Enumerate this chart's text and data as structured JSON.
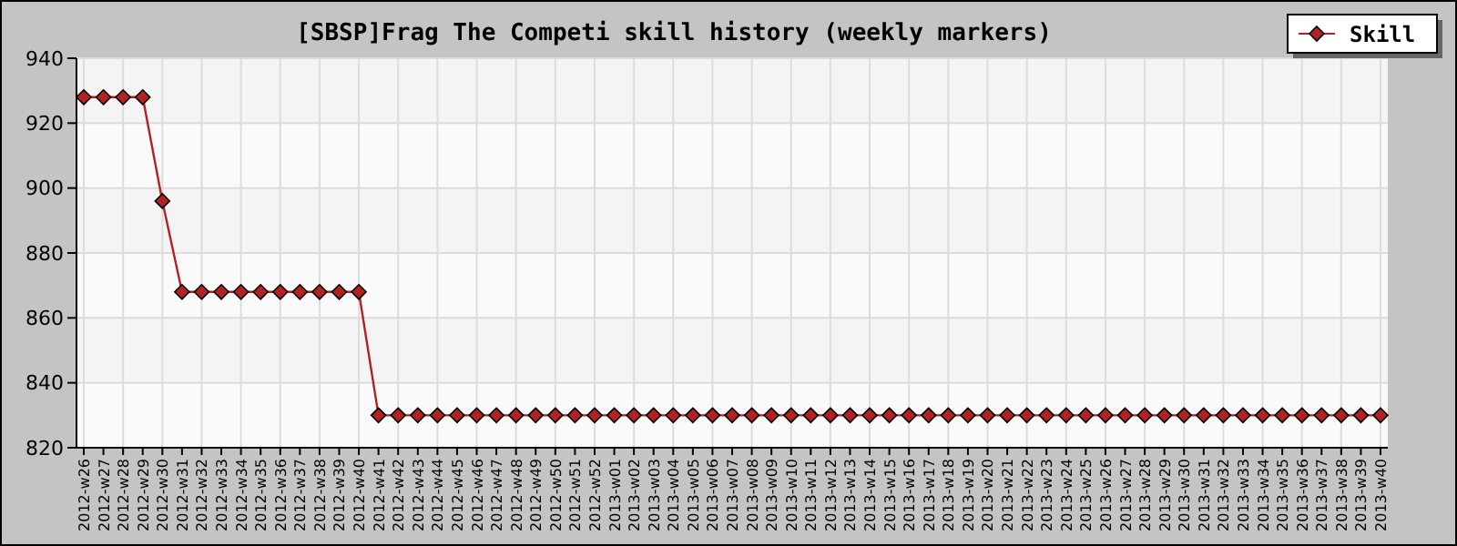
{
  "chart_data": {
    "type": "line",
    "title": "[SBSP]Frag The Competi skill history (weekly markers)",
    "categories": [
      "2012-w26",
      "2012-w27",
      "2012-w28",
      "2012-w29",
      "2012-w30",
      "2012-w31",
      "2012-w32",
      "2012-w33",
      "2012-w34",
      "2012-w35",
      "2012-w36",
      "2012-w37",
      "2012-w38",
      "2012-w39",
      "2012-w40",
      "2012-w41",
      "2012-w42",
      "2012-w43",
      "2012-w44",
      "2012-w45",
      "2012-w46",
      "2012-w47",
      "2012-w48",
      "2012-w49",
      "2012-w50",
      "2012-w51",
      "2012-w52",
      "2013-w01",
      "2013-w02",
      "2013-w03",
      "2013-w04",
      "2013-w05",
      "2013-w06",
      "2013-w07",
      "2013-w08",
      "2013-w09",
      "2013-w10",
      "2013-w11",
      "2013-w12",
      "2013-w13",
      "2013-w14",
      "2013-w15",
      "2013-w16",
      "2013-w17",
      "2013-w18",
      "2013-w19",
      "2013-w20",
      "2013-w21",
      "2013-w22",
      "2013-w23",
      "2013-w24",
      "2013-w25",
      "2013-w26",
      "2013-w27",
      "2013-w28",
      "2013-w29",
      "2013-w30",
      "2013-w31",
      "2013-w32",
      "2013-w33",
      "2013-w34",
      "2013-w35",
      "2013-w36",
      "2013-w37",
      "2013-w38",
      "2013-w39",
      "2013-w40"
    ],
    "series": [
      {
        "name": "Skill",
        "color": "#b22222",
        "values": [
          928,
          928,
          928,
          928,
          896,
          868,
          868,
          868,
          868,
          868,
          868,
          868,
          868,
          868,
          868,
          830,
          830,
          830,
          830,
          830,
          830,
          830,
          830,
          830,
          830,
          830,
          830,
          830,
          830,
          830,
          830,
          830,
          830,
          830,
          830,
          830,
          830,
          830,
          830,
          830,
          830,
          830,
          830,
          830,
          830,
          830,
          830,
          830,
          830,
          830,
          830,
          830,
          830,
          830,
          830,
          830,
          830,
          830,
          830,
          830,
          830,
          830,
          830,
          830,
          830,
          830,
          830
        ]
      }
    ],
    "ylim": [
      820,
      940
    ],
    "yticks": [
      820,
      840,
      860,
      880,
      900,
      920,
      940
    ],
    "grid": true,
    "legend": "top right",
    "marker": "diamond",
    "line_style": "solid"
  }
}
